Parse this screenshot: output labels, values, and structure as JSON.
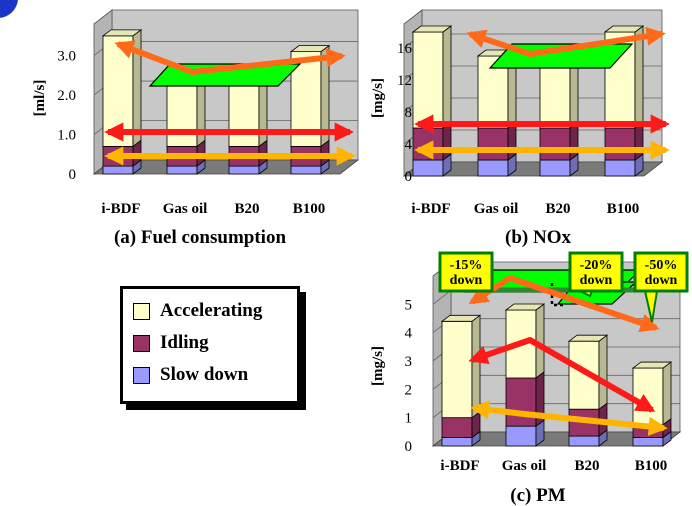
{
  "colors": {
    "accelerating": "#ffffcc",
    "idling": "#993366",
    "slow_down": "#9999ff",
    "wall": "#c8c8c8",
    "floor": "#7a7a7a",
    "arrow_orange": "#ff6a1a",
    "arrow_red": "#ff1a1a",
    "arrow_yellow": "#ffb400",
    "plane_green": "#00ff00",
    "callout_yellow": "#ffff00",
    "callout_border": "#008000"
  },
  "legend": {
    "items": [
      {
        "label": "Accelerating",
        "color": "#ffffcc"
      },
      {
        "label": "Idling",
        "color": "#993366"
      },
      {
        "label": "Slow down",
        "color": "#9999ff"
      }
    ]
  },
  "callouts": [
    {
      "text_line1": "-15%",
      "text_line2": "down"
    },
    {
      "text_line1": "-20%",
      "text_line2": "down"
    },
    {
      "text_line1": "-50%",
      "text_line2": "down"
    }
  ],
  "chart_data": [
    {
      "type": "bar",
      "stacked": true,
      "title": "(a)  Fuel consumption",
      "ylabel": "[ml/s]",
      "categories": [
        "i-BDF",
        "Gas oil",
        "B20",
        "B100"
      ],
      "yticks": [
        "0",
        "1.0",
        "2.0",
        "3.0"
      ],
      "ylim": [
        0,
        3.8
      ],
      "series": [
        {
          "name": "Slow down",
          "values": [
            0.2,
            0.2,
            0.2,
            0.2
          ]
        },
        {
          "name": "Idling",
          "values": [
            0.5,
            0.5,
            0.5,
            0.5
          ]
        },
        {
          "name": "Accelerating",
          "values": [
            2.8,
            1.9,
            1.9,
            2.4
          ]
        }
      ]
    },
    {
      "type": "bar",
      "stacked": true,
      "title": "(b)  NOx",
      "ylabel": "[mg/s]",
      "categories": [
        "i-BDF",
        "Gas oil",
        "B20",
        "B100"
      ],
      "yticks": [
        "0",
        "4",
        "8",
        "12",
        "16"
      ],
      "ylim": [
        0,
        19
      ],
      "series": [
        {
          "name": "Slow down",
          "values": [
            2,
            2,
            2,
            2
          ]
        },
        {
          "name": "Idling",
          "values": [
            4,
            4,
            4,
            4
          ]
        },
        {
          "name": "Accelerating",
          "values": [
            12,
            9,
            9,
            12
          ]
        }
      ]
    },
    {
      "type": "bar",
      "stacked": true,
      "title": "(c)  PM",
      "ylabel": "[mg/s]",
      "categories": [
        "i-BDF",
        "Gas oil",
        "B20",
        "B100"
      ],
      "yticks": [
        "0",
        "1",
        "2",
        "3",
        "4",
        "5"
      ],
      "ylim": [
        0,
        6
      ],
      "series": [
        {
          "name": "Slow down",
          "values": [
            0.3,
            0.7,
            0.35,
            0.3
          ]
        },
        {
          "name": "Idling",
          "values": [
            0.7,
            1.7,
            0.95,
            0.45
          ]
        },
        {
          "name": "Accelerating",
          "values": [
            3.4,
            2.4,
            2.4,
            2.0
          ]
        }
      ]
    }
  ]
}
